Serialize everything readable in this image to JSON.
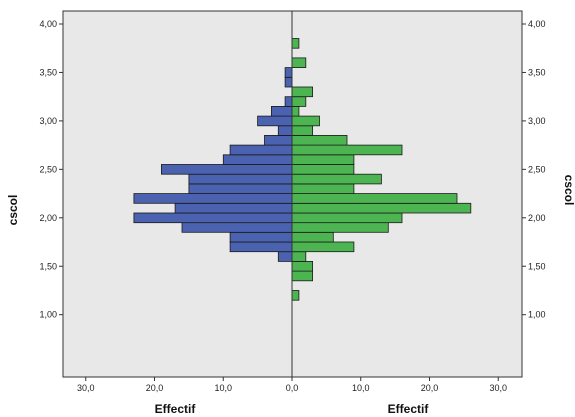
{
  "chart_data": {
    "type": "bar",
    "orientation": "back-to-back horizontal histogram",
    "ylabel": "cscol",
    "xlabel_left": "Effectif",
    "xlabel_right": "Effectif",
    "ylim": [
      0.95,
      4.1
    ],
    "bin_width": 0.1,
    "y_ticks": [
      "1,00",
      "1,50",
      "2,00",
      "2,50",
      "3,00",
      "3,50",
      "4,00"
    ],
    "x_ticks_left": [
      "30,0",
      "20,0",
      "10,0",
      "0,0"
    ],
    "x_ticks_right": [
      "10,0",
      "20,0",
      "30,0"
    ],
    "x_max": 32,
    "colors": {
      "left": "#4a62b0",
      "right": "#4cb450",
      "plot_bg": "#e8e8e8"
    },
    "series": [
      {
        "side": "left",
        "bins": [
          {
            "y": 1.6,
            "value": 2
          },
          {
            "y": 1.7,
            "value": 9
          },
          {
            "y": 1.8,
            "value": 9
          },
          {
            "y": 1.9,
            "value": 16
          },
          {
            "y": 2.0,
            "value": 23
          },
          {
            "y": 2.1,
            "value": 17
          },
          {
            "y": 2.2,
            "value": 23
          },
          {
            "y": 2.3,
            "value": 15
          },
          {
            "y": 2.4,
            "value": 15
          },
          {
            "y": 2.5,
            "value": 19
          },
          {
            "y": 2.6,
            "value": 10
          },
          {
            "y": 2.7,
            "value": 9
          },
          {
            "y": 2.8,
            "value": 4
          },
          {
            "y": 2.9,
            "value": 2
          },
          {
            "y": 3.0,
            "value": 5
          },
          {
            "y": 3.1,
            "value": 3
          },
          {
            "y": 3.2,
            "value": 1
          },
          {
            "y": 3.4,
            "value": 1
          },
          {
            "y": 3.5,
            "value": 1
          }
        ]
      },
      {
        "side": "right",
        "bins": [
          {
            "y": 1.2,
            "value": 1
          },
          {
            "y": 1.4,
            "value": 3
          },
          {
            "y": 1.5,
            "value": 3
          },
          {
            "y": 1.6,
            "value": 2
          },
          {
            "y": 1.7,
            "value": 9
          },
          {
            "y": 1.8,
            "value": 6
          },
          {
            "y": 1.9,
            "value": 14
          },
          {
            "y": 2.0,
            "value": 16
          },
          {
            "y": 2.1,
            "value": 26
          },
          {
            "y": 2.2,
            "value": 24
          },
          {
            "y": 2.3,
            "value": 9
          },
          {
            "y": 2.4,
            "value": 13
          },
          {
            "y": 2.5,
            "value": 9
          },
          {
            "y": 2.6,
            "value": 9
          },
          {
            "y": 2.7,
            "value": 16
          },
          {
            "y": 2.8,
            "value": 8
          },
          {
            "y": 2.9,
            "value": 3
          },
          {
            "y": 3.0,
            "value": 4
          },
          {
            "y": 3.1,
            "value": 1
          },
          {
            "y": 3.2,
            "value": 2
          },
          {
            "y": 3.3,
            "value": 3
          },
          {
            "y": 3.6,
            "value": 2
          },
          {
            "y": 3.8,
            "value": 1
          }
        ]
      }
    ]
  }
}
